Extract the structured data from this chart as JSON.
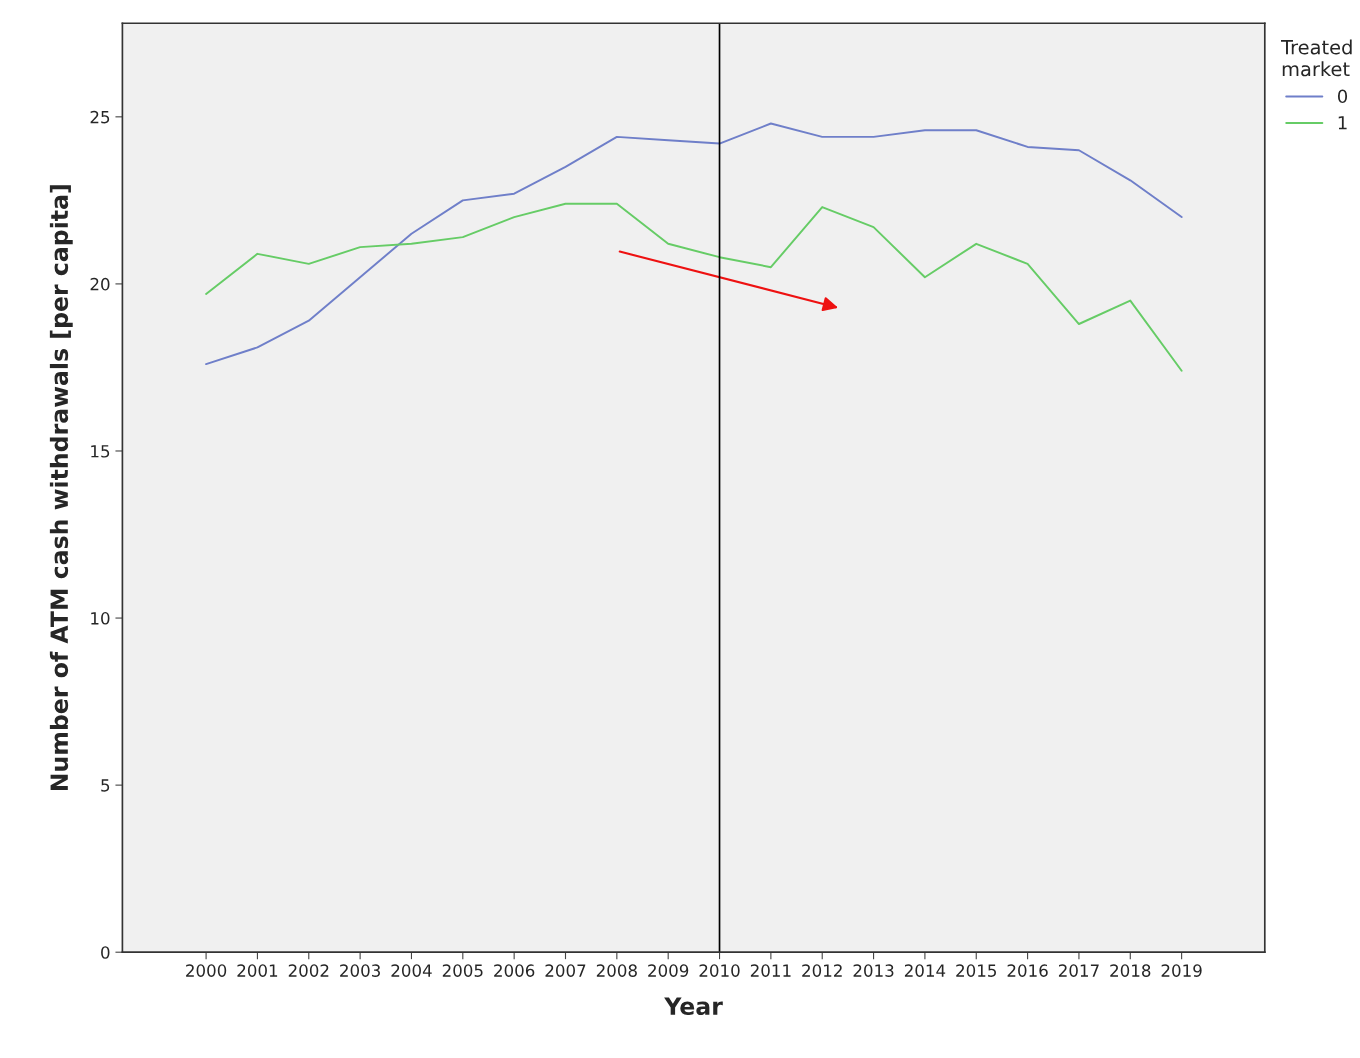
{
  "chart_data": {
    "type": "line",
    "xlabel": "Year",
    "ylabel": "Number of ATM cash withdrawals [per capita]",
    "legend_title": "Treated\nmarket",
    "categories": [
      "2000",
      "2001",
      "2002",
      "2003",
      "2004",
      "2005",
      "2006",
      "2007",
      "2008",
      "2009",
      "2010",
      "2011",
      "2012",
      "2013",
      "2014",
      "2015",
      "2016",
      "2017",
      "2018",
      "2019"
    ],
    "series": [
      {
        "name": "0",
        "color": "#6f7fc9",
        "values": [
          17.6,
          18.1,
          18.9,
          20.2,
          21.5,
          22.5,
          22.7,
          23.5,
          24.4,
          24.3,
          24.2,
          24.8,
          24.4,
          24.4,
          24.6,
          24.6,
          24.1,
          24.0,
          23.1,
          22.0
        ]
      },
      {
        "name": "1",
        "color": "#66cc66",
        "values": [
          19.7,
          20.9,
          20.6,
          21.1,
          21.2,
          21.4,
          22.0,
          22.4,
          22.4,
          21.2,
          20.8,
          20.5,
          22.3,
          21.7,
          20.2,
          21.2,
          20.6,
          18.8,
          19.5,
          17.4
        ]
      }
    ],
    "ylim": [
      0,
      27.8
    ],
    "yticks": [
      0,
      5,
      10,
      15,
      20,
      25
    ],
    "ref_lines": [
      {
        "axis": "x",
        "value": "2010",
        "color": "#000000"
      }
    ],
    "grid": false,
    "legend": "top right"
  }
}
